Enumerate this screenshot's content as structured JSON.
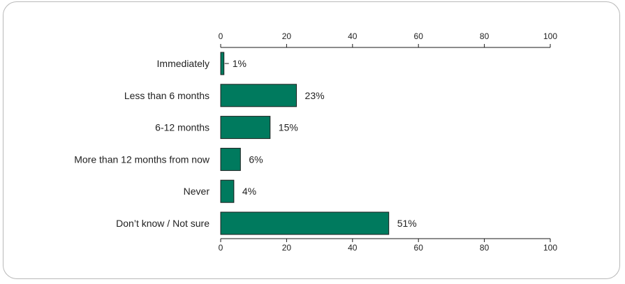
{
  "chart_data": {
    "type": "bar",
    "orientation": "horizontal",
    "categories": [
      "Immediately",
      "Less than 6 months",
      "6-12 months",
      "More than 12 months from now",
      "Never",
      "Don’t know / Not sure"
    ],
    "values": [
      1,
      23,
      15,
      6,
      4,
      51
    ],
    "value_labels": [
      "1%",
      "23%",
      "15%",
      "6%",
      "4%",
      "51%"
    ],
    "xlim": [
      0,
      100
    ],
    "xticks": [
      0,
      20,
      40,
      60,
      80,
      100
    ],
    "xtick_labels": [
      "0",
      "20",
      "40",
      "60",
      "80",
      "100"
    ],
    "axes_top_and_bottom": true,
    "grid": false,
    "colors": {
      "bar": "#007a5e",
      "bar_stroke": "#1e1e1e",
      "axis": "#1a1a1a"
    }
  }
}
